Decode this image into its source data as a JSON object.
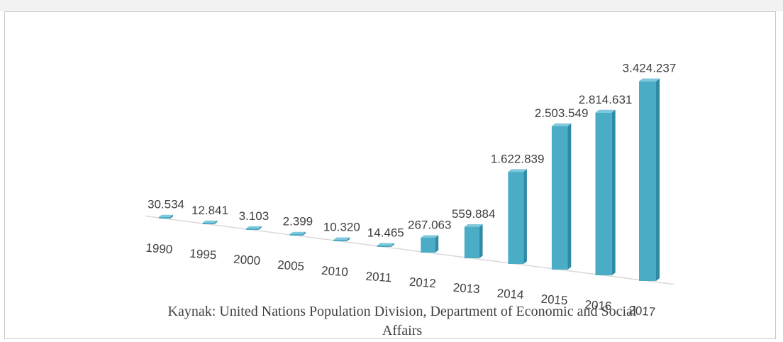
{
  "chart_data": {
    "type": "bar",
    "style": "3d-perspective",
    "categories": [
      "1990",
      "1995",
      "2000",
      "2005",
      "2010",
      "2011",
      "2012",
      "2013",
      "2014",
      "2015",
      "2016",
      "2017"
    ],
    "series": [
      {
        "values": [
          30534,
          12841,
          3103,
          2399,
          10320,
          14465,
          267063,
          559884,
          1622839,
          2503549,
          2814631,
          3424237
        ],
        "labels": [
          "30.534",
          "12.841",
          "3.103",
          "2.399",
          "10.320",
          "14.465",
          "267.063",
          "559.884",
          "1.622.839",
          "2.503.549",
          "2.814.631",
          "3.424.237"
        ],
        "color": "#4bacc6"
      }
    ],
    "grid": false,
    "legend": "none"
  },
  "source": {
    "line1": "Kaynak: United Nations Population Division, Department of Economic and Social",
    "line2": "Affairs"
  },
  "colors": {
    "bar_front": "#4bacc6",
    "bar_top": "#7fc8dc",
    "bar_side": "#2e8aa6",
    "axis": "#d9d9d9",
    "text": "#404040"
  }
}
